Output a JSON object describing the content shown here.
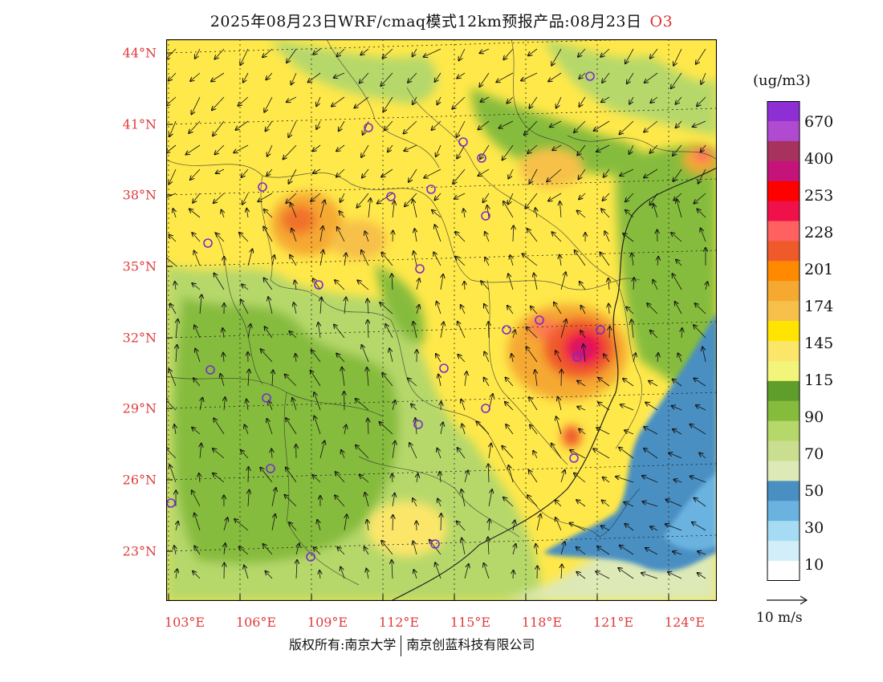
{
  "title": {
    "main": "2025年08月23日WRF/cmaq模式12km预报产品:08月23日",
    "species": "O3"
  },
  "map": {
    "lat_labels": [
      "44°N",
      "41°N",
      "38°N",
      "35°N",
      "32°N",
      "29°N",
      "26°N",
      "23°N"
    ],
    "lon_labels": [
      "103°E",
      "106°E",
      "109°E",
      "112°E",
      "115°E",
      "118°E",
      "121°E",
      "124°E"
    ]
  },
  "colorbar": {
    "unit": "(ug/m3)",
    "labels": [
      "670",
      "400",
      "253",
      "228",
      "201",
      "174",
      "145",
      "115",
      "90",
      "70",
      "50",
      "30",
      "10"
    ],
    "colors": [
      "#8e2fd6",
      "#b04ad0",
      "#a8325e",
      "#c4147a",
      "#ff0000",
      "#f0104a",
      "#ff6060",
      "#ef5a2a",
      "#ff8a00",
      "#f5a930",
      "#f7c04a",
      "#ffe400",
      "#fbe66a",
      "#f2f57a",
      "#5f9e2a",
      "#86bc3c",
      "#b6d86a",
      "#c9df8f",
      "#dde9b6",
      "#4a8fc2",
      "#6ab3e0",
      "#a6dcf3",
      "#d2eef9",
      "#ffffff"
    ]
  },
  "wind": {
    "label": "10 m/s"
  },
  "footer": {
    "left": "版权所有:南京大学",
    "right": "南京创蓝科技有限公司"
  }
}
